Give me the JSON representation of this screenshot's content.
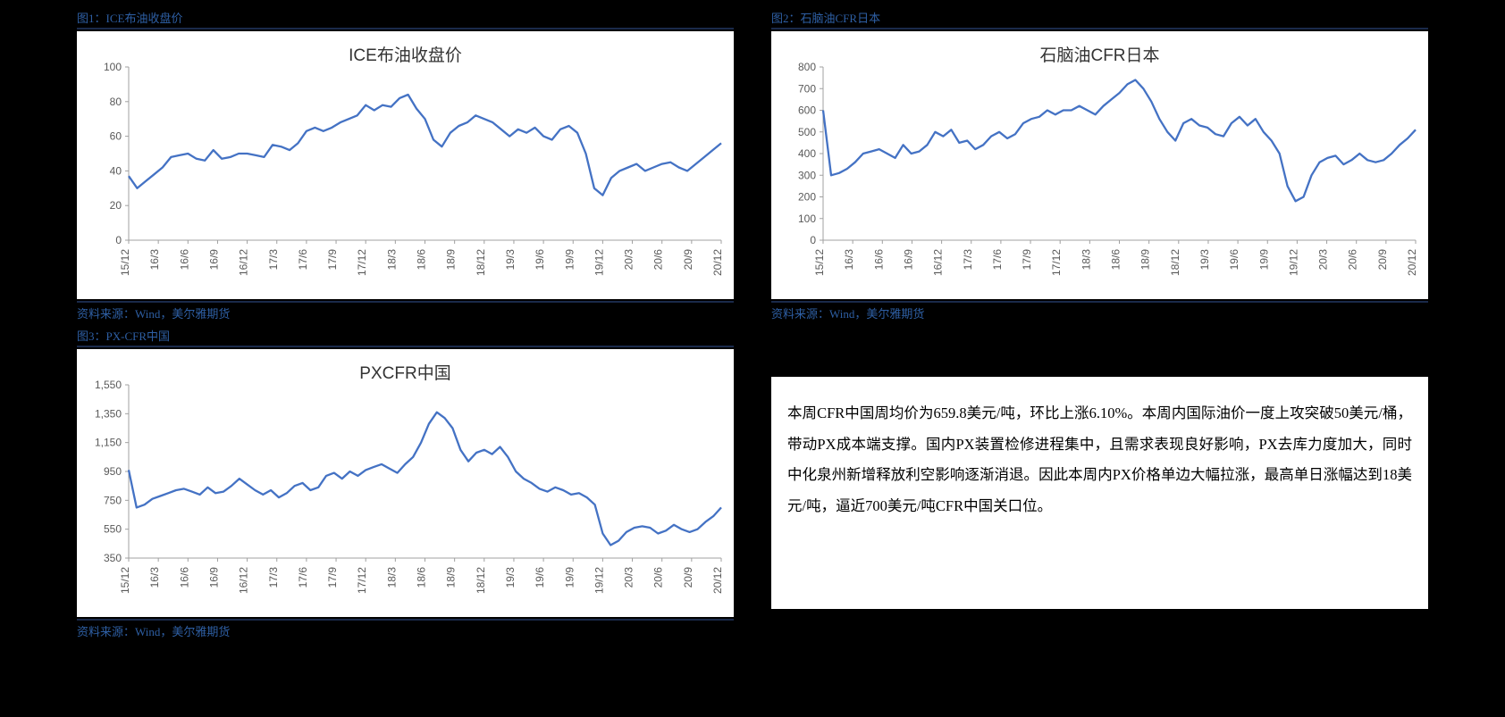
{
  "layout": {
    "page_bg": "#000000",
    "panel_bg": "#ffffff",
    "caption_color": "#2e5fa4",
    "caption_border": "#1a2a4a"
  },
  "charts": {
    "chart1": {
      "type": "line",
      "caption": "图1：ICE布油收盘价",
      "source": "资料来源：Wind，美尔雅期货",
      "title": "ICE布油收盘价",
      "title_fontsize": 19,
      "line_color": "#4472c4",
      "line_width": 2.3,
      "bg": "#ffffff",
      "axis_color": "#a0a0a0",
      "label_color": "#595959",
      "label_fontsize": 12,
      "ylim": [
        0,
        100
      ],
      "ytick_step": 20,
      "yticks": [
        0,
        20,
        40,
        60,
        80,
        100
      ],
      "x_labels": [
        "15/12",
        "16/3",
        "16/6",
        "16/9",
        "16/12",
        "17/3",
        "17/6",
        "17/9",
        "17/12",
        "18/3",
        "18/6",
        "18/9",
        "18/12",
        "19/3",
        "19/6",
        "19/9",
        "19/12",
        "20/3",
        "20/6",
        "20/9",
        "20/12"
      ],
      "values": [
        37,
        30,
        34,
        38,
        42,
        48,
        49,
        50,
        47,
        46,
        52,
        47,
        48,
        50,
        50,
        49,
        48,
        55,
        54,
        52,
        56,
        63,
        65,
        63,
        65,
        68,
        70,
        72,
        78,
        75,
        78,
        77,
        82,
        84,
        76,
        70,
        58,
        54,
        62,
        66,
        68,
        72,
        70,
        68,
        64,
        60,
        64,
        62,
        65,
        60,
        58,
        64,
        66,
        62,
        50,
        30,
        26,
        36,
        40,
        42,
        44,
        40,
        42,
        44,
        45,
        42,
        40,
        44,
        48,
        52,
        56
      ]
    },
    "chart2": {
      "type": "line",
      "caption": "图2：石脑油CFR日本",
      "source": "资料来源：Wind，美尔雅期货",
      "title": "石脑油CFR日本",
      "title_fontsize": 19,
      "line_color": "#4472c4",
      "line_width": 2.3,
      "bg": "#ffffff",
      "axis_color": "#a0a0a0",
      "label_color": "#595959",
      "label_fontsize": 12,
      "ylim": [
        0,
        800
      ],
      "ytick_step": 100,
      "yticks": [
        0,
        100,
        200,
        300,
        400,
        500,
        600,
        700,
        800
      ],
      "x_labels": [
        "15/12",
        "16/3",
        "16/6",
        "16/9",
        "16/12",
        "17/3",
        "17/6",
        "17/9",
        "17/12",
        "18/3",
        "18/6",
        "18/9",
        "18/12",
        "19/3",
        "19/6",
        "19/9",
        "19/12",
        "20/3",
        "20/6",
        "20/9",
        "20/12"
      ],
      "values": [
        600,
        300,
        310,
        330,
        360,
        400,
        410,
        420,
        400,
        380,
        440,
        400,
        410,
        440,
        500,
        480,
        510,
        450,
        460,
        420,
        440,
        480,
        500,
        470,
        490,
        540,
        560,
        570,
        600,
        580,
        600,
        600,
        620,
        600,
        580,
        620,
        650,
        680,
        720,
        740,
        700,
        640,
        560,
        500,
        460,
        540,
        560,
        530,
        520,
        490,
        480,
        540,
        570,
        530,
        560,
        500,
        460,
        400,
        250,
        180,
        200,
        300,
        360,
        380,
        390,
        350,
        370,
        400,
        370,
        360,
        370,
        400,
        440,
        470,
        510
      ]
    },
    "chart3": {
      "type": "line",
      "caption": "图3：PX-CFR中国",
      "source": "资料来源：Wind，美尔雅期货",
      "title": "PXCFR中国",
      "title_fontsize": 19,
      "line_color": "#4472c4",
      "line_width": 2.3,
      "bg": "#ffffff",
      "axis_color": "#a0a0a0",
      "label_color": "#595959",
      "label_fontsize": 12,
      "ylim": [
        350,
        1550
      ],
      "ytick_step": 200,
      "yticks": [
        350,
        550,
        750,
        950,
        1150,
        1350,
        1550
      ],
      "x_labels": [
        "15/12",
        "16/3",
        "16/6",
        "16/9",
        "16/12",
        "17/3",
        "17/6",
        "17/9",
        "17/12",
        "18/3",
        "18/6",
        "18/9",
        "18/12",
        "19/3",
        "19/6",
        "19/9",
        "19/12",
        "20/3",
        "20/6",
        "20/9",
        "20/12"
      ],
      "values": [
        960,
        700,
        720,
        760,
        780,
        800,
        820,
        830,
        810,
        790,
        840,
        800,
        810,
        850,
        900,
        860,
        820,
        790,
        820,
        770,
        800,
        850,
        870,
        820,
        840,
        920,
        940,
        900,
        950,
        920,
        960,
        980,
        1000,
        970,
        940,
        1000,
        1050,
        1150,
        1280,
        1360,
        1320,
        1250,
        1100,
        1020,
        1080,
        1100,
        1070,
        1120,
        1050,
        950,
        900,
        870,
        830,
        810,
        840,
        820,
        790,
        800,
        770,
        720,
        520,
        440,
        470,
        530,
        560,
        570,
        560,
        520,
        540,
        580,
        550,
        530,
        550,
        600,
        640,
        700
      ]
    }
  },
  "commentary": {
    "text": "本周CFR中国周均价为659.8美元/吨，环比上涨6.10%。本周内国际油价一度上攻突破50美元/桶，带动PX成本端支撑。国内PX装置检修进程集中，且需求表现良好影响，PX去库力度加大，同时中化泉州新增释放利空影响逐渐消退。因此本周内PX价格单边大幅拉涨，最高单日涨幅达到18美元/吨，逼近700美元/吨CFR中国关口位。",
    "fontsize": 16.5,
    "line_height": 2.1,
    "color": "#000000",
    "bg": "#ffffff"
  }
}
